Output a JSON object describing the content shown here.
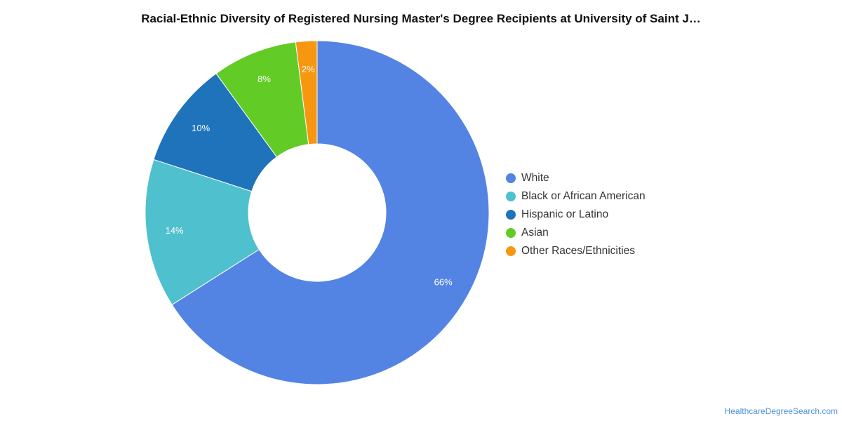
{
  "chart_data": {
    "type": "pie",
    "title": "Racial-Ethnic Diversity of Registered Nursing Master's Degree Recipients at University of Saint J…",
    "donut": true,
    "legend_position": "right",
    "slices": [
      {
        "name": "White",
        "value": 66,
        "label": "66%",
        "color": "#5384E3"
      },
      {
        "name": "Black or African American",
        "value": 14,
        "label": "14%",
        "color": "#4FC0CD"
      },
      {
        "name": "Hispanic or Latino",
        "value": 10,
        "label": "10%",
        "color": "#1E73BA"
      },
      {
        "name": "Asian",
        "value": 8,
        "label": "8%",
        "color": "#62CB26"
      },
      {
        "name": "Other Races/Ethnicities",
        "value": 2,
        "label": "2%",
        "color": "#F7970F"
      }
    ]
  },
  "footer": {
    "credit": "HealthcareDegreeSearch.com"
  }
}
